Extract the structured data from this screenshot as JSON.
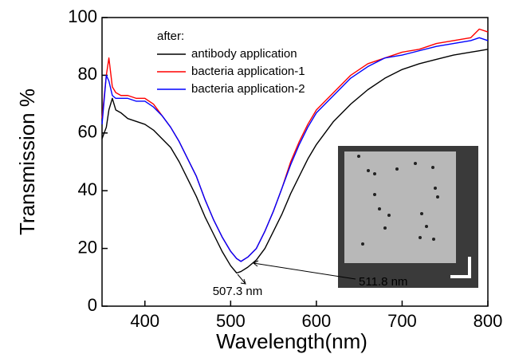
{
  "chart_data": {
    "type": "line",
    "xlabel": "Wavelength(nm)",
    "ylabel": "Transmission %",
    "legend_title": "after:",
    "x": [
      350,
      355,
      358,
      362,
      366,
      372,
      380,
      390,
      400,
      410,
      420,
      430,
      440,
      450,
      460,
      470,
      480,
      490,
      500,
      507,
      512,
      520,
      530,
      540,
      550,
      560,
      570,
      580,
      590,
      600,
      620,
      640,
      660,
      680,
      700,
      720,
      740,
      760,
      780,
      790,
      800
    ],
    "series": [
      {
        "name": "antibody application",
        "color": "#000000",
        "values": [
          58,
          62,
          68,
          72,
          68,
          67,
          65,
          64,
          63,
          61,
          58,
          55,
          50,
          44,
          38,
          31,
          25,
          19,
          14,
          11.5,
          12,
          13.5,
          16,
          20,
          26,
          32,
          39,
          45,
          51,
          56,
          64,
          70,
          75,
          79,
          82,
          84,
          85.5,
          87,
          88,
          88.5,
          89
        ]
      },
      {
        "name": "bacteria application-1",
        "color": "#ff0000",
        "values": [
          65,
          80,
          86,
          76,
          74,
          73,
          73,
          72,
          72,
          70,
          66,
          62,
          57,
          51,
          45,
          37,
          30,
          24,
          19,
          16.5,
          15.5,
          17,
          20,
          26,
          33,
          41,
          50,
          57,
          63,
          68,
          74,
          80,
          84,
          86,
          88,
          89,
          91,
          92,
          93,
          96,
          95
        ]
      },
      {
        "name": "bacteria application-2",
        "color": "#0000ff",
        "values": [
          63,
          80,
          78,
          73,
          72,
          72,
          72,
          71,
          71,
          69,
          66,
          62,
          57,
          51,
          45,
          37,
          30,
          24,
          19,
          16.5,
          15.5,
          17,
          20,
          26,
          33,
          41,
          49,
          56,
          62,
          67,
          73,
          79,
          83,
          86,
          87,
          88.5,
          90,
          91,
          92,
          93,
          92
        ]
      }
    ],
    "annotations": [
      "507.3 nm",
      "511.8 nm"
    ],
    "xlim": [
      350,
      800
    ],
    "xticks": [
      400,
      500,
      600,
      700,
      800
    ],
    "ylim": [
      0,
      100
    ],
    "yticks": [
      0,
      20,
      40,
      60,
      80,
      100
    ]
  }
}
